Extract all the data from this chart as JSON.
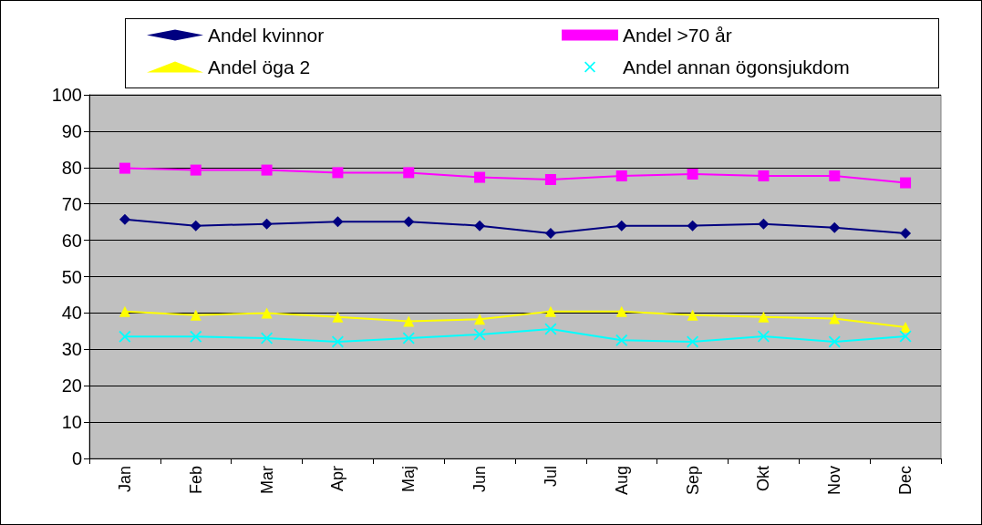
{
  "chart_data": {
    "type": "line",
    "categories": [
      "Jan",
      "Feb",
      "Mar",
      "Apr",
      "Maj",
      "Jun",
      "Jul",
      "Aug",
      "Sep",
      "Okt",
      "Nov",
      "Dec"
    ],
    "series": [
      {
        "name": "Andel kvinnor",
        "color": "#000080",
        "marker": "diamond",
        "values": [
          65.7,
          64,
          64.5,
          65.1,
          65.1,
          64,
          61.9,
          64,
          64,
          64.5,
          63.5,
          61.9
        ]
      },
      {
        "name": "Andel >70 år",
        "color": "#ff00ff",
        "marker": "square",
        "values": [
          79.8,
          79.3,
          79.3,
          78.6,
          78.6,
          77.3,
          76.7,
          77.7,
          78.2,
          77.7,
          77.7,
          75.8
        ]
      },
      {
        "name": "Andel öga 2",
        "color": "#ffff00",
        "marker": "triangle",
        "values": [
          40.4,
          39.4,
          40,
          38.9,
          37.7,
          38.3,
          40.4,
          40.4,
          39.4,
          38.9,
          38.5,
          36.1
        ]
      },
      {
        "name": "Andel annan ögonsjukdom",
        "color": "#00ffff",
        "marker": "cross",
        "values": [
          33.5,
          33.5,
          33.1,
          32.1,
          33.1,
          34.1,
          35.6,
          32.5,
          32.1,
          33.6,
          32.1,
          33.6
        ]
      }
    ],
    "ylim": [
      0,
      100
    ],
    "yticks": [
      0,
      10,
      20,
      30,
      40,
      50,
      60,
      70,
      80,
      90,
      100
    ],
    "grid": "y",
    "legend": "top",
    "line_style": "solid"
  }
}
